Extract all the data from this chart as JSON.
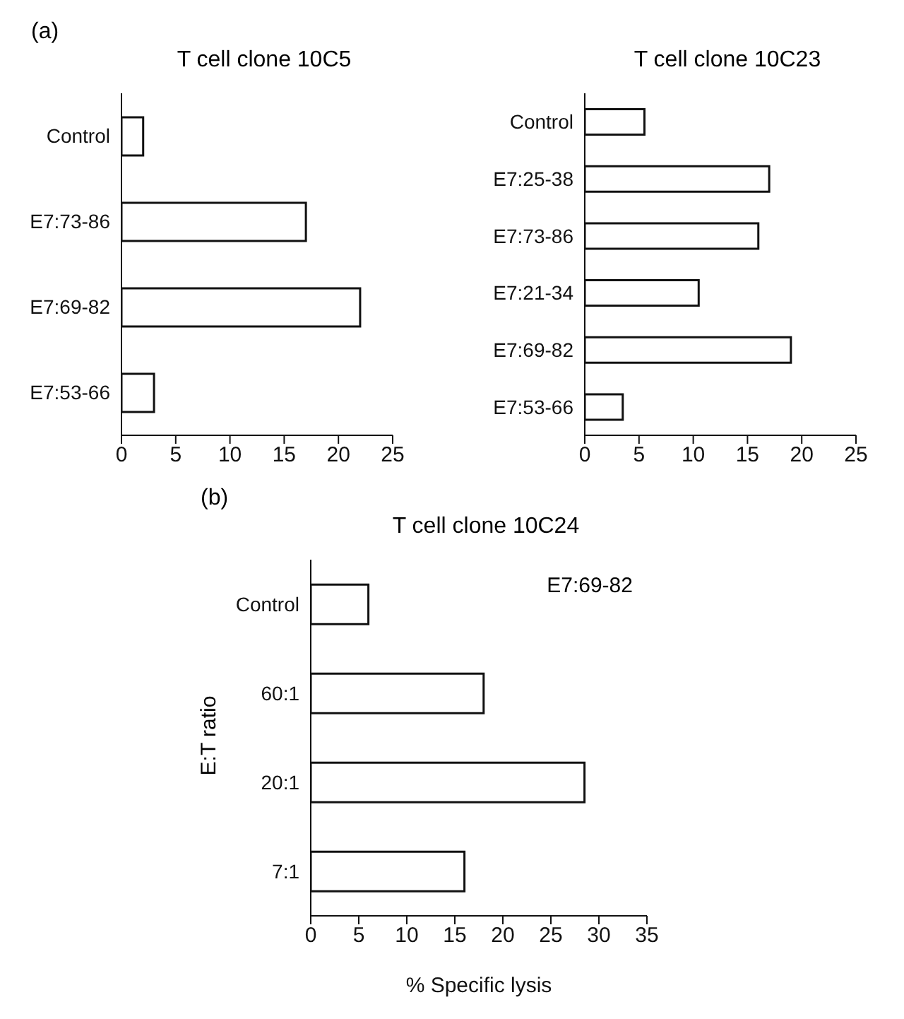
{
  "chart_data": [
    {
      "type": "bar",
      "orientation": "horizontal",
      "title": "T cell clone 10C5",
      "annotations": [
        "(a)"
      ],
      "categories": [
        "Control",
        "E7:73-86",
        "E7:69-82",
        "E7:53-66"
      ],
      "values": [
        2,
        17,
        22,
        3
      ],
      "color": "#ffffff",
      "xlim": [
        0,
        25
      ],
      "xticks": [
        0,
        5,
        10,
        15,
        20,
        25
      ],
      "grid": false,
      "legend": false
    },
    {
      "type": "bar",
      "orientation": "horizontal",
      "title": "T cell clone 10C23",
      "categories": [
        "Control",
        "E7:25-38",
        "E7:73-86",
        "E7:21-34",
        "E7:69-82",
        "E7:53-66"
      ],
      "values": [
        5.5,
        17,
        16,
        10.5,
        19,
        3.5
      ],
      "color": "#ffffff",
      "xlim": [
        0,
        25
      ],
      "xticks": [
        0,
        5,
        10,
        15,
        20,
        25
      ],
      "grid": false,
      "legend": false
    },
    {
      "type": "bar",
      "orientation": "horizontal",
      "title": "T cell clone 10C24",
      "subtitle": "E7:69-82",
      "annotations": [
        "(b)"
      ],
      "xlabel": "% Specific lysis",
      "ylabel": "E:T ratio",
      "categories": [
        "Control",
        "60:1",
        "20:1",
        "7:1"
      ],
      "values": [
        6,
        18,
        28.5,
        16
      ],
      "color": "#ffffff",
      "xlim": [
        0,
        35
      ],
      "xticks": [
        0,
        5,
        10,
        15,
        20,
        25,
        30,
        35
      ],
      "grid": false,
      "legend": false
    }
  ]
}
